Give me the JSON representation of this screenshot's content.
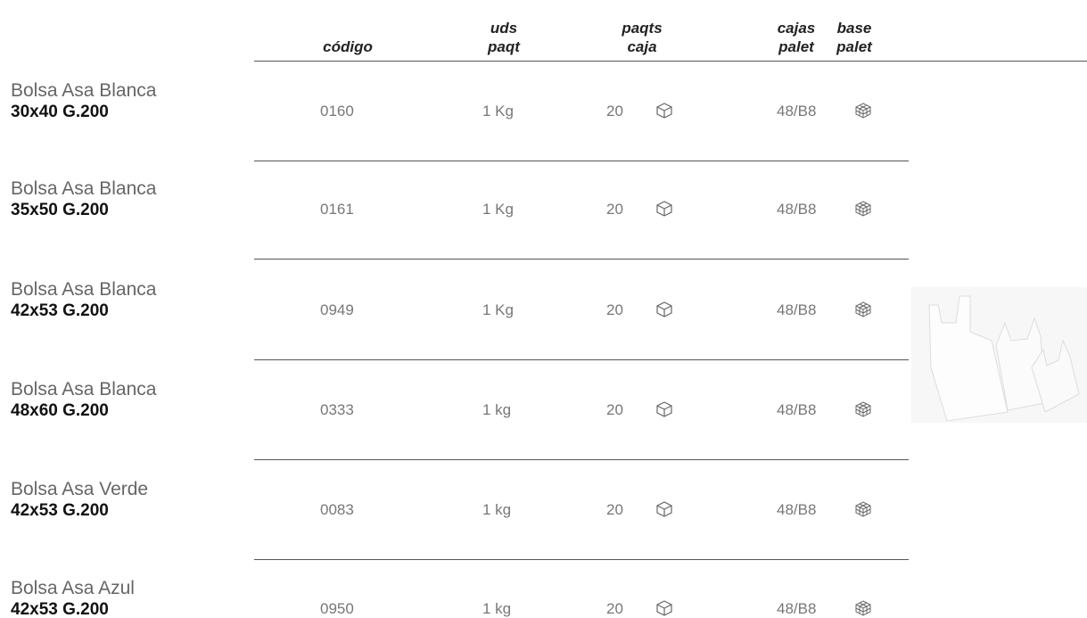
{
  "table": {
    "header": [
      [
        "código"
      ],
      [
        "uds",
        "paqt"
      ],
      [
        "paqts",
        "caja"
      ],
      [
        "cajas",
        "palet"
      ],
      [
        "base",
        "palet"
      ]
    ],
    "rows": [
      [
        "Bolsa Asa Blanca",
        "30x40 G.200",
        "0160",
        "1 Kg",
        "20",
        "48/B8"
      ],
      [
        "Bolsa Asa Blanca",
        "35x50 G.200",
        "0161",
        "1 Kg",
        "20",
        "48/B8"
      ],
      [
        "Bolsa Asa Blanca",
        "42x53 G.200",
        "0949",
        "1 Kg",
        "20",
        "48/B8"
      ],
      [
        "Bolsa Asa Blanca",
        "48x60 G.200",
        "0333",
        "1 kg",
        "20",
        "48/B8"
      ],
      [
        "Bolsa Asa Verde",
        "42x53 G.200",
        "0083",
        "1 kg",
        "20",
        "48/B8"
      ],
      [
        "Bolsa Asa Azul",
        "42x53 G.200",
        "0950",
        "1 kg",
        "20",
        "48/B8"
      ]
    ]
  }
}
